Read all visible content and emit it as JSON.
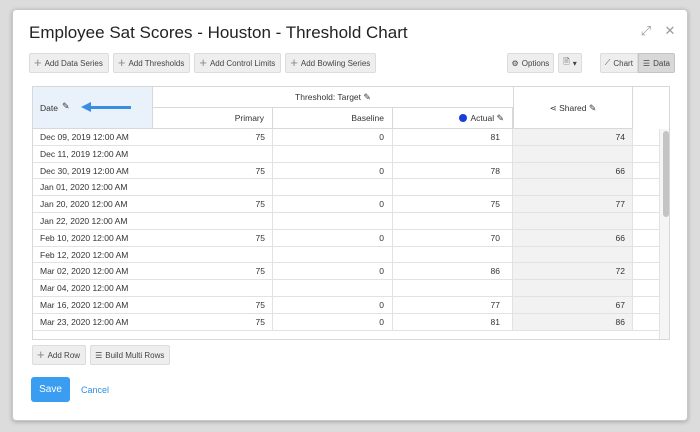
{
  "window": {
    "title": "Employee Sat Scores - Houston - Threshold Chart",
    "expand_icon": "expand-icon",
    "close_icon": "close-icon"
  },
  "toolbar": {
    "buttons": [
      "Add Data Series",
      "Add Thresholds",
      "Add Control Limits",
      "Add Bowling Series"
    ],
    "options_label": "Options",
    "chart_label": "Chart",
    "data_label": "Data",
    "active_view": "Data"
  },
  "grid": {
    "date_header": "Date",
    "threshold_header": "Threshold: Target",
    "shared_header": "Shared",
    "sub_headers": [
      "Primary",
      "Baseline",
      "Actual"
    ],
    "actual_dot_color": "#1b3fd6",
    "accent_color": "#3a8de0",
    "rows": [
      {
        "date": "Dec 09, 2019 12:00 AM",
        "primary": "75",
        "baseline": "0",
        "actual": "81",
        "shared": "74"
      },
      {
        "date": "Dec 11, 2019 12:00 AM",
        "primary": "",
        "baseline": "",
        "actual": "",
        "shared": ""
      },
      {
        "date": "Dec 30, 2019 12:00 AM",
        "primary": "75",
        "baseline": "0",
        "actual": "78",
        "shared": "66"
      },
      {
        "date": "Jan 01, 2020 12:00 AM",
        "primary": "",
        "baseline": "",
        "actual": "",
        "shared": ""
      },
      {
        "date": "Jan 20, 2020 12:00 AM",
        "primary": "75",
        "baseline": "0",
        "actual": "75",
        "shared": "77"
      },
      {
        "date": "Jan 22, 2020 12:00 AM",
        "primary": "",
        "baseline": "",
        "actual": "",
        "shared": ""
      },
      {
        "date": "Feb 10, 2020 12:00 AM",
        "primary": "75",
        "baseline": "0",
        "actual": "70",
        "shared": "66"
      },
      {
        "date": "Feb 12, 2020 12:00 AM",
        "primary": "",
        "baseline": "",
        "actual": "",
        "shared": ""
      },
      {
        "date": "Mar 02, 2020 12:00 AM",
        "primary": "75",
        "baseline": "0",
        "actual": "86",
        "shared": "72"
      },
      {
        "date": "Mar 04, 2020 12:00 AM",
        "primary": "",
        "baseline": "",
        "actual": "",
        "shared": ""
      },
      {
        "date": "Mar 16, 2020 12:00 AM",
        "primary": "75",
        "baseline": "0",
        "actual": "77",
        "shared": "67"
      },
      {
        "date": "Mar 23, 2020 12:00 AM",
        "primary": "75",
        "baseline": "0",
        "actual": "81",
        "shared": "86"
      }
    ]
  },
  "footer": {
    "add_row_label": "Add Row",
    "build_multi_rows_label": "Build Multi Rows",
    "save_label": "Save",
    "cancel_label": "Cancel"
  }
}
